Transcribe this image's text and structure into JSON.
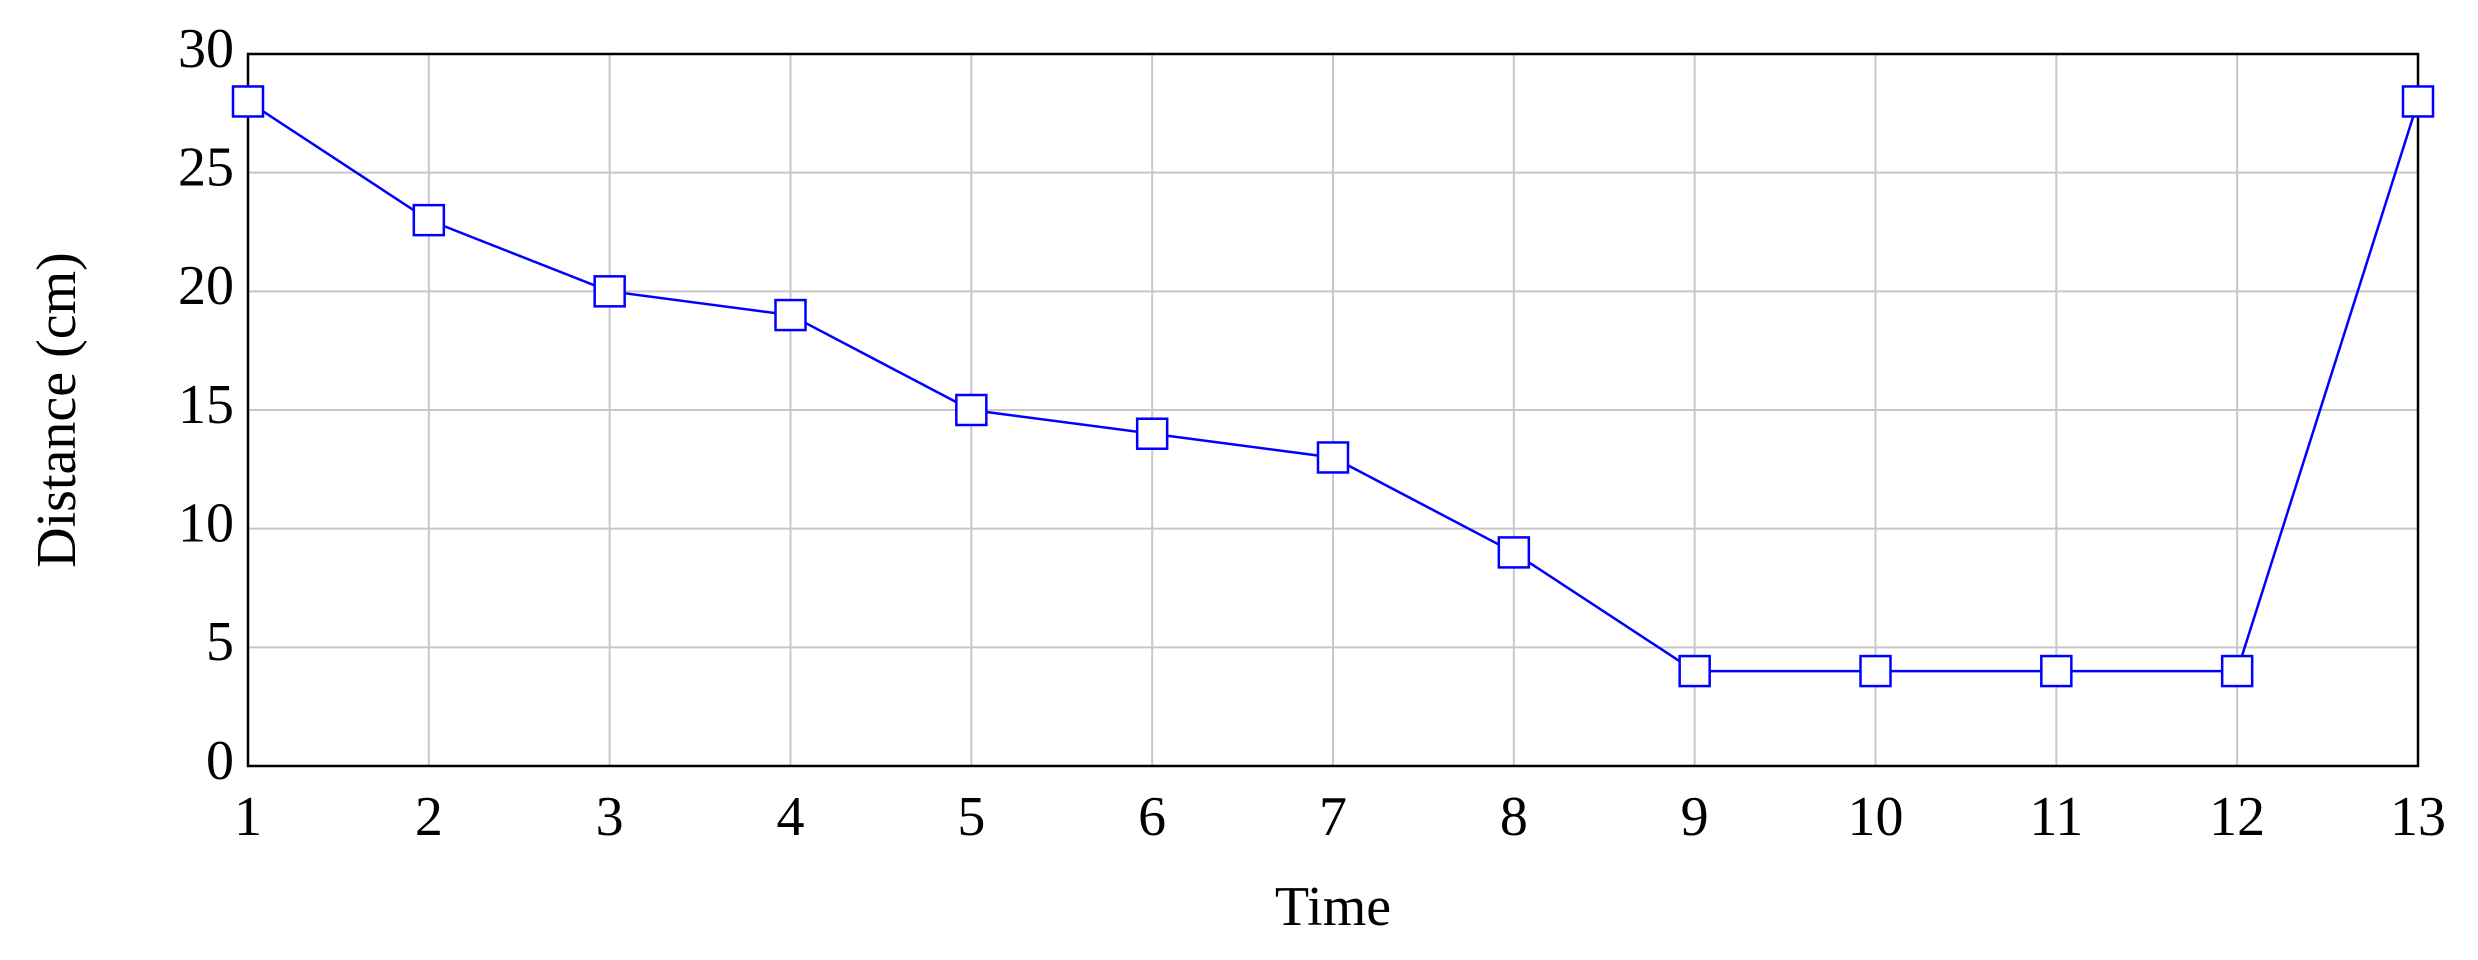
{
  "chart_data": {
    "type": "line",
    "x": [
      1,
      2,
      3,
      4,
      5,
      6,
      7,
      8,
      9,
      10,
      11,
      12,
      13
    ],
    "values": [
      28,
      23,
      20,
      19,
      15,
      14,
      13,
      9,
      4,
      4,
      4,
      4,
      28
    ],
    "color": "#0000ff",
    "marker": "square",
    "x_label": "Time",
    "y_label": "Distance (cm)",
    "xlim": [
      1,
      13
    ],
    "xticks": [
      1,
      2,
      3,
      4,
      5,
      6,
      7,
      8,
      9,
      10,
      11,
      12,
      13
    ],
    "ylim": [
      0,
      30
    ],
    "yticks": [
      0,
      5,
      10,
      15,
      20,
      25,
      30
    ],
    "grid": true
  }
}
